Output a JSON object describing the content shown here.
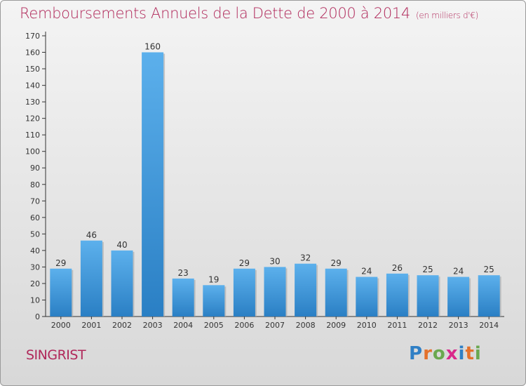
{
  "title": "Remboursements Annuels de la Dette de 2000 à 2014",
  "unit_note": "(en milliers d'€)",
  "commune": "SINGRIST",
  "logo": {
    "letters": [
      "P",
      "r",
      "o",
      "x",
      "i",
      "t",
      "i"
    ],
    "colors": [
      "#2f7fc5",
      "#e4712b",
      "#6aa84f",
      "#d9288b",
      "#2f7fc5",
      "#e4712b",
      "#6aa84f"
    ]
  },
  "chart_data": {
    "type": "bar",
    "categories": [
      "2000",
      "2001",
      "2002",
      "2003",
      "2004",
      "2005",
      "2006",
      "2007",
      "2008",
      "2009",
      "2010",
      "2011",
      "2012",
      "2013",
      "2014"
    ],
    "values": [
      29,
      46,
      40,
      160,
      23,
      19,
      29,
      30,
      32,
      29,
      24,
      26,
      25,
      24,
      25
    ],
    "ylim": [
      0,
      170
    ],
    "yticks": [
      0,
      10,
      20,
      30,
      40,
      50,
      60,
      70,
      80,
      90,
      100,
      110,
      120,
      130,
      140,
      150,
      160,
      170
    ],
    "grid": false,
    "bar_color": "#3c95d9"
  }
}
